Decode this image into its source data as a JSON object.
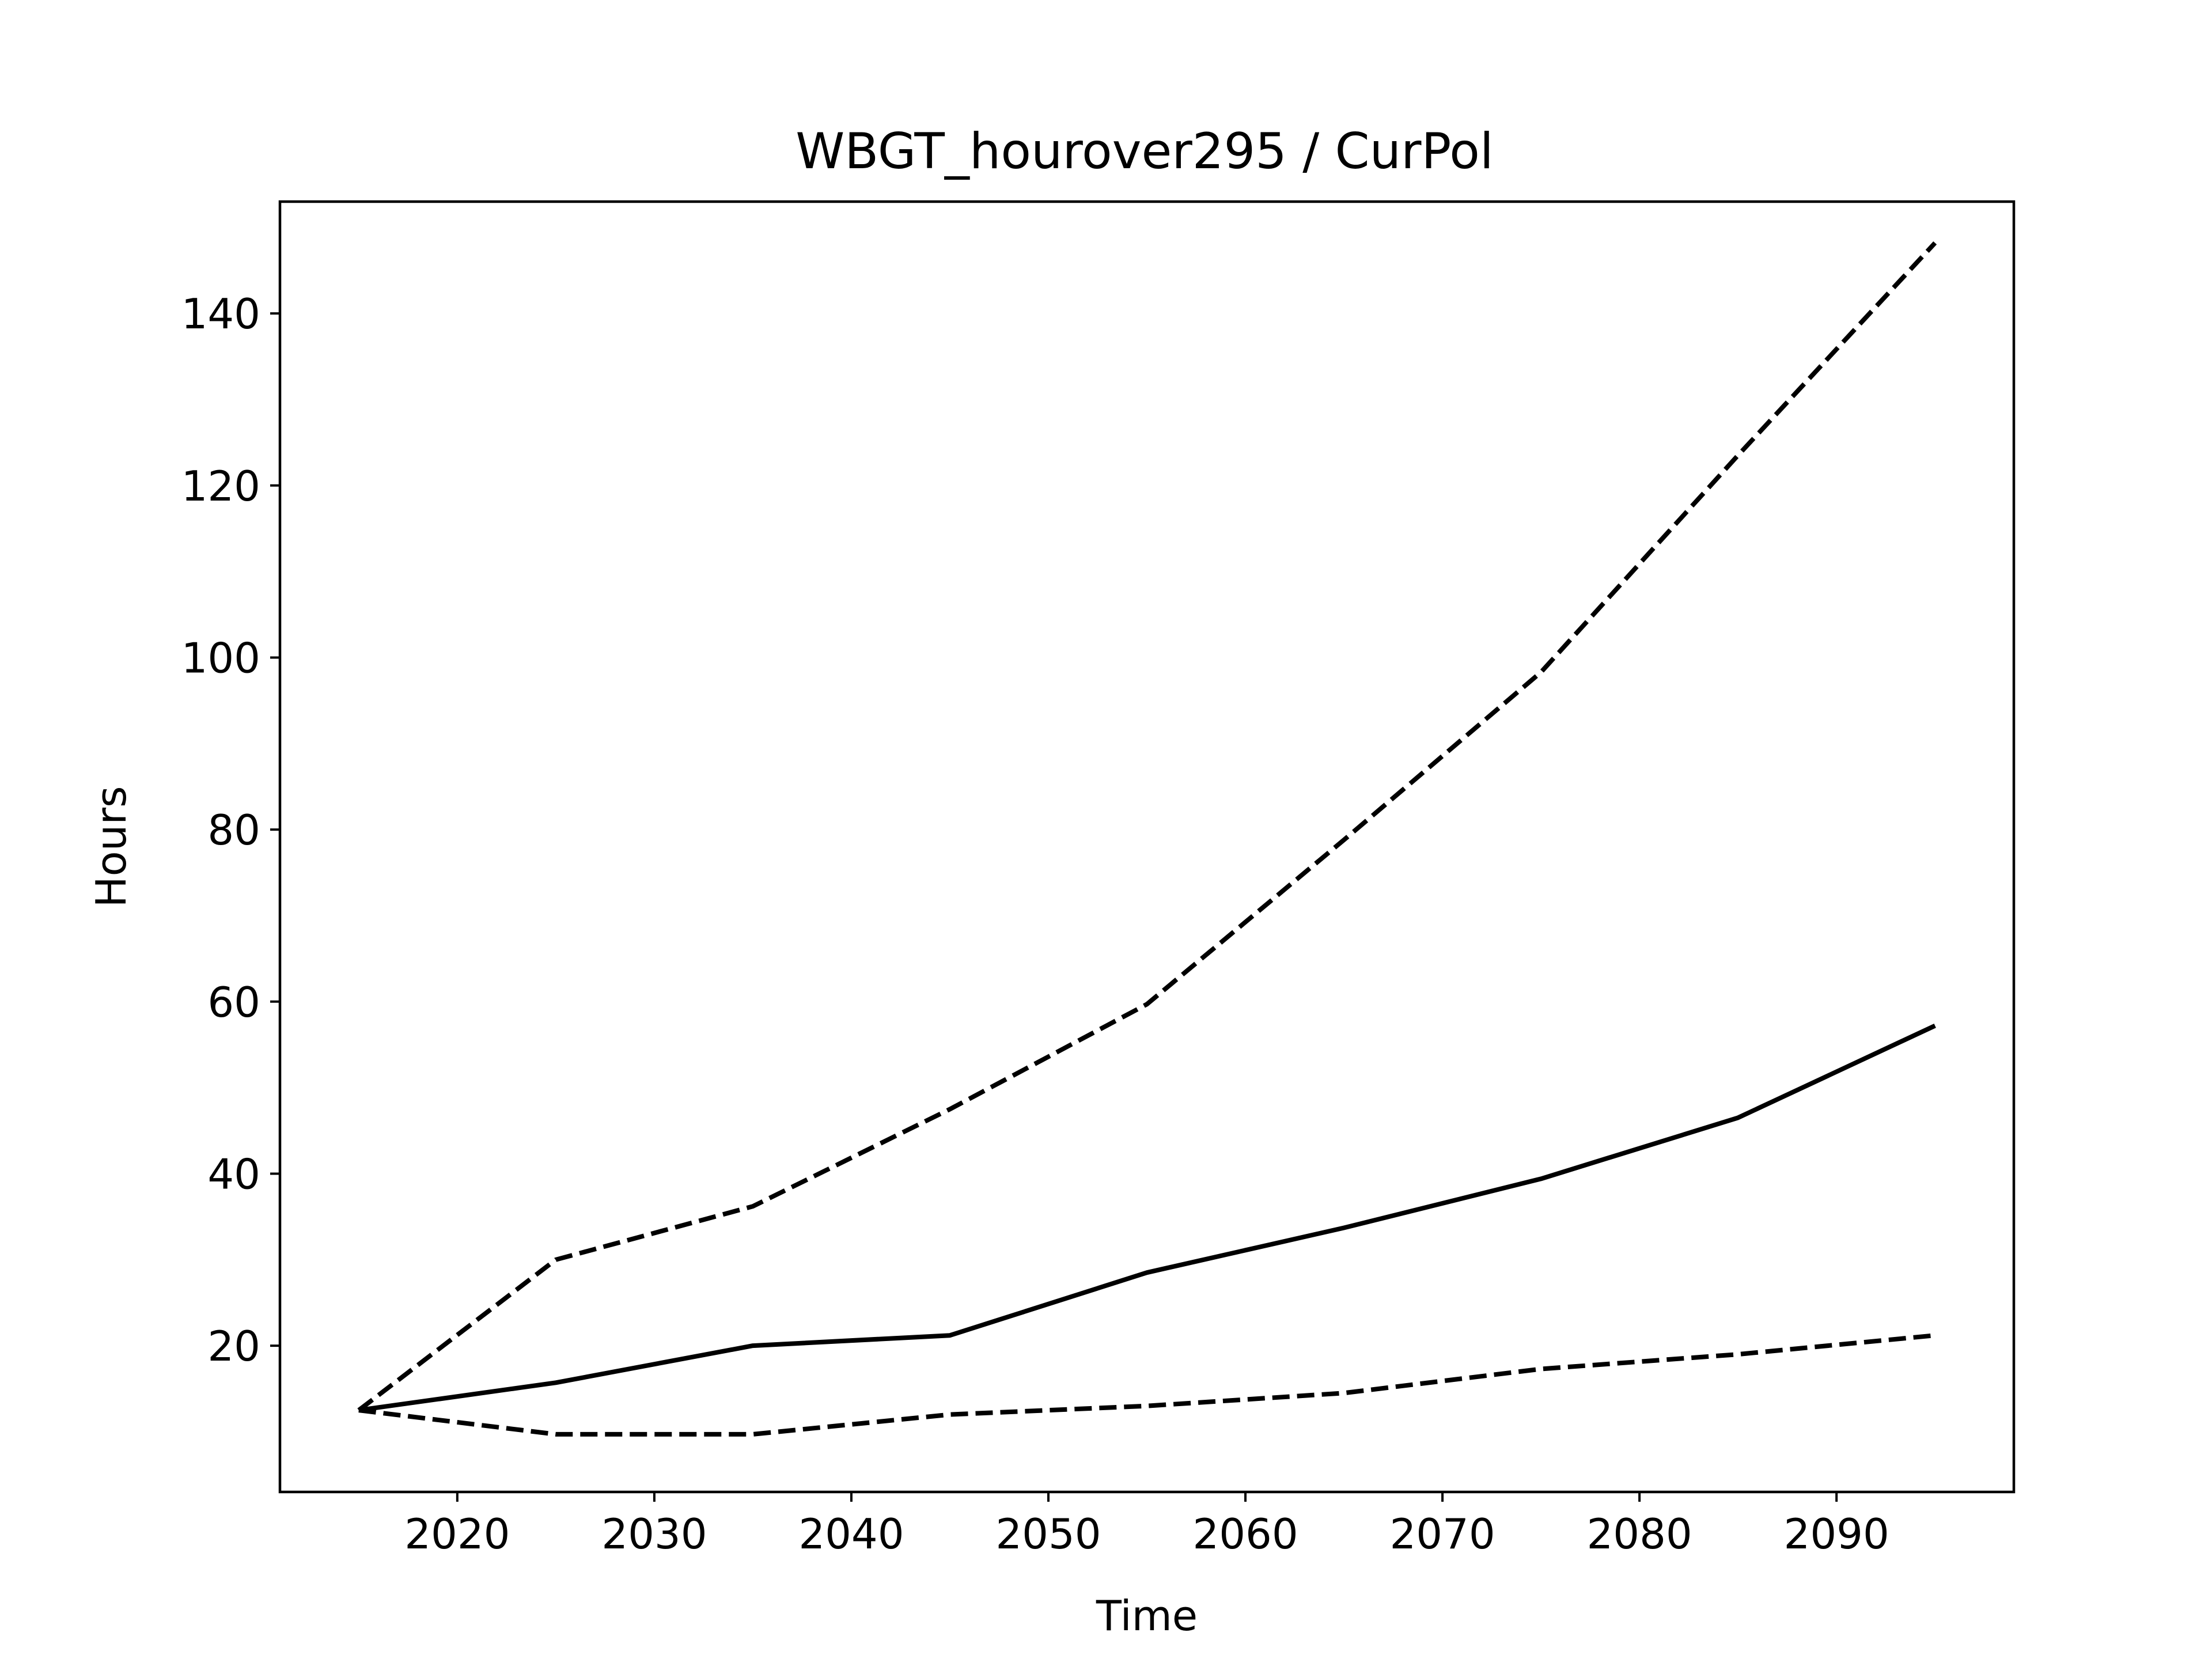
{
  "chart_data": {
    "type": "line",
    "title": "WBGT_hourover295 / CurPol",
    "xlabel": "Time",
    "ylabel": "Hours",
    "xlim": [
      2011,
      2099
    ],
    "ylim": [
      3,
      153
    ],
    "x_ticks": [
      2020,
      2030,
      2040,
      2050,
      2060,
      2070,
      2080,
      2090
    ],
    "y_ticks": [
      20,
      40,
      60,
      80,
      100,
      120,
      140
    ],
    "grid": false,
    "series": [
      {
        "style": "solid",
        "color": "#000000",
        "points": [
          [
            2015,
            12.5
          ],
          [
            2025,
            15.7
          ],
          [
            2035,
            20.0
          ],
          [
            2045,
            21.2
          ],
          [
            2055,
            28.5
          ],
          [
            2065,
            33.7
          ],
          [
            2075,
            39.4
          ],
          [
            2085,
            46.5
          ],
          [
            2095,
            57.2
          ]
        ]
      },
      {
        "style": "dashed",
        "color": "#000000",
        "points": [
          [
            2015,
            12.5
          ],
          [
            2025,
            30.0
          ],
          [
            2035,
            36.2
          ],
          [
            2045,
            47.5
          ],
          [
            2055,
            59.7
          ],
          [
            2065,
            78.8
          ],
          [
            2075,
            98.3
          ],
          [
            2085,
            123.5
          ],
          [
            2095,
            148.2
          ]
        ]
      },
      {
        "style": "dashed",
        "color": "#000000",
        "points": [
          [
            2015,
            12.5
          ],
          [
            2025,
            9.7
          ],
          [
            2035,
            9.7
          ],
          [
            2045,
            12.0
          ],
          [
            2055,
            13.0
          ],
          [
            2065,
            14.5
          ],
          [
            2075,
            17.3
          ],
          [
            2085,
            19.0
          ],
          [
            2095,
            21.2
          ]
        ]
      }
    ]
  }
}
